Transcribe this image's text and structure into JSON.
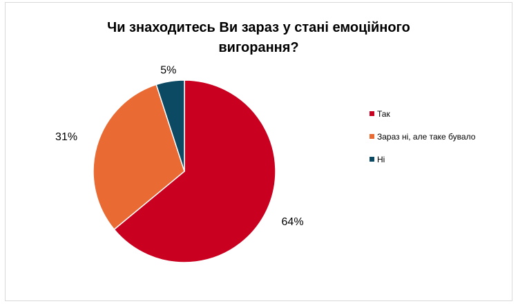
{
  "chart_data": {
    "type": "pie",
    "title_lines": [
      "Чи знаходитесь Ви зараз у стані емоційного",
      "вигорання?"
    ],
    "slices": [
      {
        "label": "Так",
        "value": 64,
        "display": "64%",
        "color": "#c9001f"
      },
      {
        "label": "Зараз ні, але таке бувало",
        "value": 31,
        "display": "31%",
        "color": "#e96a33"
      },
      {
        "label": "Ні",
        "value": 5,
        "display": "5%",
        "color": "#0b4a62"
      }
    ],
    "start_angle_deg": 0,
    "direction": "clockwise",
    "legend_position": "right"
  }
}
